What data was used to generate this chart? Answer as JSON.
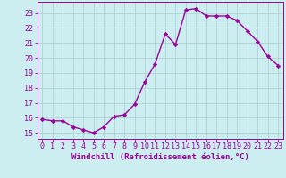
{
  "x": [
    0,
    1,
    2,
    3,
    4,
    5,
    6,
    7,
    8,
    9,
    10,
    11,
    12,
    13,
    14,
    15,
    16,
    17,
    18,
    19,
    20,
    21,
    22,
    23
  ],
  "y": [
    15.9,
    15.8,
    15.8,
    15.4,
    15.2,
    15.0,
    15.4,
    16.1,
    16.2,
    16.9,
    18.4,
    19.6,
    21.6,
    20.9,
    23.2,
    23.3,
    22.8,
    22.8,
    22.8,
    22.5,
    21.8,
    21.1,
    20.1,
    19.5
  ],
  "line_color": "#990099",
  "marker": "D",
  "markersize": 2.2,
  "linewidth": 1.0,
  "xlabel": "Windchill (Refroidissement éolien,°C)",
  "xlabel_fontsize": 6.5,
  "ylabel_ticks": [
    15,
    16,
    17,
    18,
    19,
    20,
    21,
    22,
    23
  ],
  "xlim": [
    -0.5,
    23.5
  ],
  "ylim": [
    14.6,
    23.75
  ],
  "bg_color": "#cceef0",
  "grid_color": "#aacccc",
  "tick_fontsize": 6.0
}
